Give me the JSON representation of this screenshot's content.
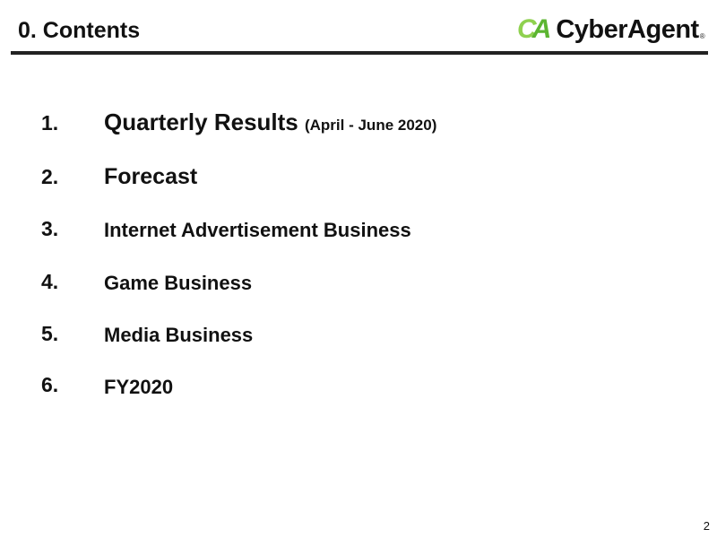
{
  "header": {
    "title": "0. Contents",
    "logo_text": "CyberAgent",
    "logo_mark": "CA",
    "logo_reg": "®"
  },
  "items": [
    {
      "num": "1.",
      "label": "Quarterly Results",
      "sub": "(April - June 2020)"
    },
    {
      "num": "2.",
      "label": "Forecast"
    },
    {
      "num": "3.",
      "label": "Internet Advertisement Business"
    },
    {
      "num": "4.",
      "label": "Game Business"
    },
    {
      "num": "5.",
      "label": "Media Business"
    },
    {
      "num": "6.",
      "label": "FY2020"
    }
  ],
  "page_number": "2",
  "colors": {
    "accent_green": "#5cb531",
    "rule": "#222222"
  }
}
